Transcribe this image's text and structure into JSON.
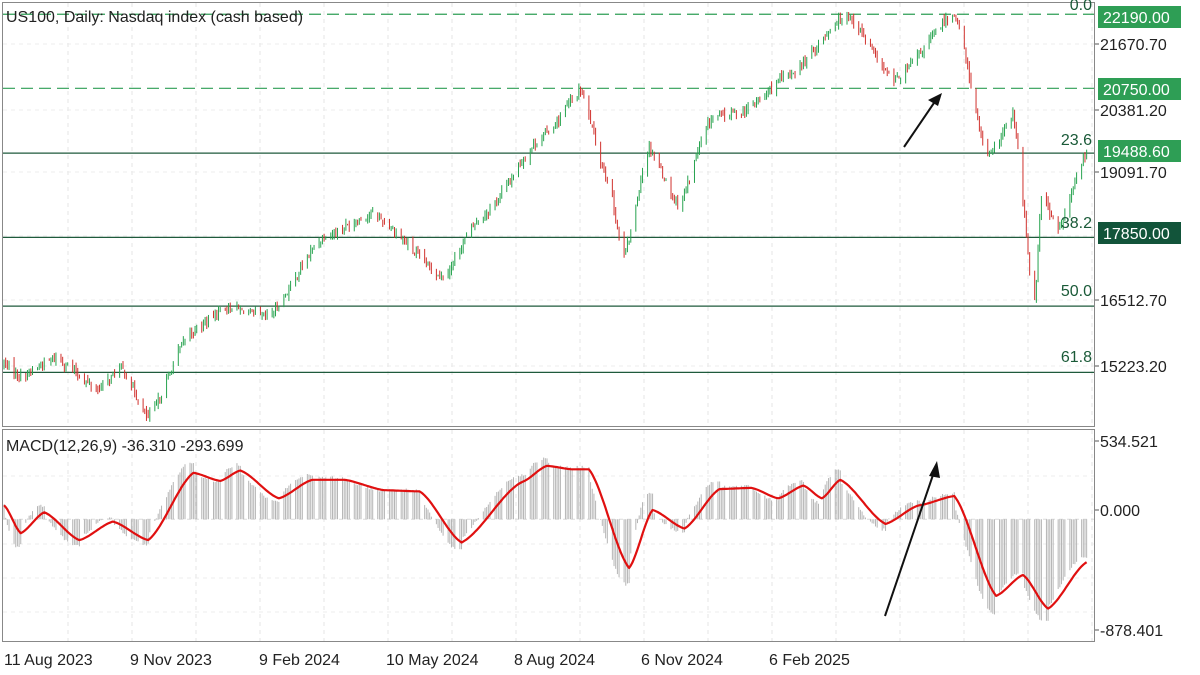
{
  "header": {
    "symbol_label": "US100, Daily:  Nasdaq index (cash based)"
  },
  "macd_header": {
    "label": "MACD(12,26,9) -36.310 -293.699"
  },
  "price_axis": {
    "ticks": [
      "21670.70",
      "20381.20",
      "19091.70",
      "16512.70",
      "15223.20"
    ]
  },
  "price_tags": [
    {
      "value": "22190.00",
      "color": "#2e9e55"
    },
    {
      "value": "20750.00",
      "color": "#2e9e55"
    },
    {
      "value": "19488.60",
      "color": "#2e9e55"
    },
    {
      "value": "17850.00",
      "color": "#12543a"
    }
  ],
  "fib_labels": {
    "f0": "0.0",
    "f236": "23.6",
    "f382": "38.2",
    "f50": "50.0",
    "f618": "61.8"
  },
  "macd_axis": {
    "top": "534.521",
    "zero": "0.000",
    "bottom": "-878.401"
  },
  "time_axis": {
    "labels": [
      "11 Aug 2023",
      "9 Nov 2023",
      "9 Feb 2024",
      "10 May 2024",
      "8 Aug 2024",
      "6 Nov 2024",
      "6 Feb 2025"
    ]
  },
  "colors": {
    "bull": "#27a34f",
    "bear": "#d0312d",
    "macd_line": "#e01010",
    "histogram": "#b5b5b5",
    "fib_line": "#1f5a3c",
    "dashed_line": "#2e9e55"
  },
  "chart_data": [
    {
      "type": "candlestick",
      "title": "US100, Daily:  Nasdaq index (cash based)",
      "x_range": [
        "2023-08-01",
        "2025-05-10"
      ],
      "y_range": [
        14200,
        22390
      ],
      "y_ticks": [
        21670.7,
        20381.2,
        19091.7,
        16512.7,
        15223.2
      ],
      "anchor_points": [
        {
          "date": "2023-08-01",
          "price": 15400
        },
        {
          "date": "2023-08-11",
          "price": 15150
        },
        {
          "date": "2023-09-01",
          "price": 15500
        },
        {
          "date": "2023-09-26",
          "price": 14900
        },
        {
          "date": "2023-10-10",
          "price": 15300
        },
        {
          "date": "2023-10-26",
          "price": 14350
        },
        {
          "date": "2023-11-20",
          "price": 16000
        },
        {
          "date": "2023-12-12",
          "price": 16500
        },
        {
          "date": "2024-01-05",
          "price": 16300
        },
        {
          "date": "2024-02-09",
          "price": 17900
        },
        {
          "date": "2024-03-08",
          "price": 18300
        },
        {
          "date": "2024-04-19",
          "price": 17100
        },
        {
          "date": "2024-05-10",
          "price": 18200
        },
        {
          "date": "2024-06-20",
          "price": 19900
        },
        {
          "date": "2024-07-10",
          "price": 20700
        },
        {
          "date": "2024-07-25",
          "price": 19100
        },
        {
          "date": "2024-08-05",
          "price": 17500
        },
        {
          "date": "2024-08-20",
          "price": 19600
        },
        {
          "date": "2024-09-06",
          "price": 18500
        },
        {
          "date": "2024-09-27",
          "price": 20200
        },
        {
          "date": "2024-10-15",
          "price": 20300
        },
        {
          "date": "2024-11-11",
          "price": 21000
        },
        {
          "date": "2024-12-16",
          "price": 22190
        },
        {
          "date": "2025-01-13",
          "price": 20900
        },
        {
          "date": "2025-02-18",
          "price": 22200
        },
        {
          "date": "2025-03-10",
          "price": 19400
        },
        {
          "date": "2025-03-25",
          "price": 20200
        },
        {
          "date": "2025-04-07",
          "price": 16600
        },
        {
          "date": "2025-04-11",
          "price": 18700
        },
        {
          "date": "2025-04-21",
          "price": 18000
        },
        {
          "date": "2025-05-08",
          "price": 19488.6
        }
      ],
      "levels": [
        {
          "label": "0.0",
          "price": 22190.0,
          "style": "dashed"
        },
        {
          "label": "",
          "price": 20750.0,
          "style": "dashed"
        },
        {
          "label": "23.6",
          "price": 19488.6,
          "style": "solid"
        },
        {
          "label": "38.2",
          "price": 17850.0,
          "style": "solid"
        },
        {
          "label": "50.0",
          "price": 16512.7,
          "style": "solid"
        },
        {
          "label": "61.8",
          "price": 15223.2,
          "style": "solid"
        }
      ],
      "annotation": {
        "type": "arrow",
        "direction": "up",
        "target": 20750.0
      }
    },
    {
      "type": "line",
      "title": "MACD(12,26,9) -36.310 -293.699",
      "y_range": [
        -1040,
        760
      ],
      "y_ticks": [
        534.521,
        0.0,
        -878.401
      ],
      "macd_last": -36.31,
      "signal_last": -293.699,
      "signal_anchor_points": [
        {
          "date": "2023-08-01",
          "price": 120
        },
        {
          "date": "2023-08-11",
          "price": -120
        },
        {
          "date": "2023-08-25",
          "price": 60
        },
        {
          "date": "2023-09-15",
          "price": -180
        },
        {
          "date": "2023-10-05",
          "price": -20
        },
        {
          "date": "2023-10-26",
          "price": -180
        },
        {
          "date": "2023-11-22",
          "price": 400
        },
        {
          "date": "2023-12-08",
          "price": 330
        },
        {
          "date": "2023-12-20",
          "price": 420
        },
        {
          "date": "2024-01-12",
          "price": 180
        },
        {
          "date": "2024-02-01",
          "price": 340
        },
        {
          "date": "2024-02-20",
          "price": 340
        },
        {
          "date": "2024-03-15",
          "price": 250
        },
        {
          "date": "2024-04-05",
          "price": 240
        },
        {
          "date": "2024-04-30",
          "price": -200
        },
        {
          "date": "2024-06-05",
          "price": 320
        },
        {
          "date": "2024-06-20",
          "price": 460
        },
        {
          "date": "2024-07-05",
          "price": 430
        },
        {
          "date": "2024-07-15",
          "price": 430
        },
        {
          "date": "2024-08-08",
          "price": -420
        },
        {
          "date": "2024-08-22",
          "price": 80
        },
        {
          "date": "2024-09-10",
          "price": -80
        },
        {
          "date": "2024-10-01",
          "price": 260
        },
        {
          "date": "2024-10-20",
          "price": 270
        },
        {
          "date": "2024-11-05",
          "price": 180
        },
        {
          "date": "2024-11-20",
          "price": 290
        },
        {
          "date": "2024-12-01",
          "price": 180
        },
        {
          "date": "2024-12-12",
          "price": 340
        },
        {
          "date": "2025-01-08",
          "price": -40
        },
        {
          "date": "2025-01-28",
          "price": 120
        },
        {
          "date": "2025-02-18",
          "price": 200
        },
        {
          "date": "2025-03-15",
          "price": -660
        },
        {
          "date": "2025-03-31",
          "price": -480
        },
        {
          "date": "2025-04-15",
          "price": -770
        },
        {
          "date": "2025-05-08",
          "price": -370
        }
      ],
      "annotation": {
        "type": "arrow",
        "direction": "up"
      }
    }
  ]
}
